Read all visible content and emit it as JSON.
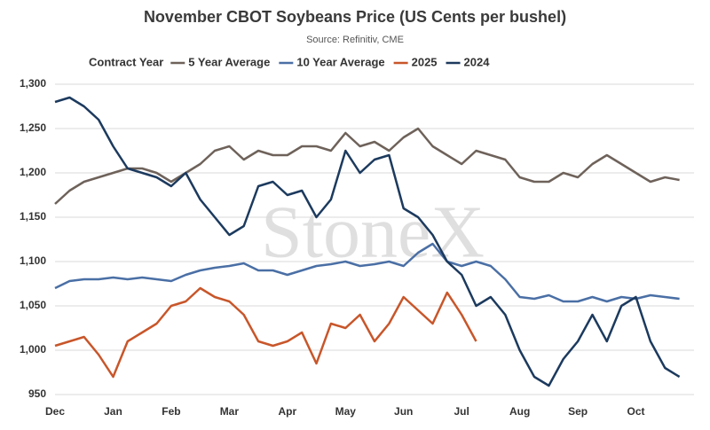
{
  "chart_data": {
    "type": "line",
    "title": "November CBOT Soybeans Price (US Cents per bushel)",
    "subtitle": "Source: Refinitiv, CME",
    "legend_title": "Contract Year",
    "watermark": "StoneX",
    "categories": [
      "Dec",
      null,
      null,
      null,
      "Jan",
      null,
      null,
      null,
      "Feb",
      null,
      null,
      null,
      "Mar",
      null,
      null,
      null,
      "Apr",
      null,
      null,
      null,
      "May",
      null,
      null,
      null,
      "Jun",
      null,
      null,
      null,
      "Jul",
      null,
      null,
      null,
      "Aug",
      null,
      null,
      null,
      "Sep",
      null,
      null,
      null,
      "Oct",
      null,
      null,
      null
    ],
    "series": [
      {
        "name": "5 Year Average",
        "color": "#6e625a",
        "values": [
          1165,
          1180,
          1190,
          1195,
          1200,
          1205,
          1205,
          1200,
          1190,
          1200,
          1210,
          1225,
          1230,
          1215,
          1225,
          1220,
          1220,
          1230,
          1230,
          1225,
          1245,
          1230,
          1235,
          1225,
          1240,
          1250,
          1230,
          1220,
          1210,
          1225,
          1220,
          1215,
          1195,
          1190,
          1190,
          1200,
          1195,
          1210,
          1220,
          1210,
          1200,
          1190,
          1195,
          1192
        ]
      },
      {
        "name": "10 Year Average",
        "color": "#4a6fa5",
        "values": [
          1070,
          1078,
          1080,
          1080,
          1082,
          1080,
          1082,
          1080,
          1078,
          1085,
          1090,
          1093,
          1095,
          1098,
          1090,
          1090,
          1085,
          1090,
          1095,
          1097,
          1100,
          1095,
          1097,
          1100,
          1095,
          1110,
          1120,
          1100,
          1095,
          1100,
          1095,
          1080,
          1060,
          1058,
          1062,
          1055,
          1055,
          1060,
          1055,
          1060,
          1058,
          1062,
          1060,
          1058
        ]
      },
      {
        "name": "2025",
        "color": "#c8562a",
        "values": [
          1005,
          1010,
          1015,
          995,
          970,
          1010,
          1020,
          1030,
          1050,
          1055,
          1070,
          1060,
          1055,
          1040,
          1010,
          1005,
          1010,
          1020,
          985,
          1030,
          1025,
          1040,
          1010,
          1030,
          1060,
          1045,
          1030,
          1065,
          1040,
          1010,
          null,
          null,
          null,
          null,
          null,
          null,
          null,
          null,
          null,
          null,
          null,
          null,
          null,
          null
        ]
      },
      {
        "name": "2024",
        "color": "#1c3a5e",
        "values": [
          1280,
          1285,
          1275,
          1260,
          1230,
          1205,
          1200,
          1195,
          1185,
          1200,
          1170,
          1150,
          1130,
          1140,
          1185,
          1190,
          1175,
          1180,
          1150,
          1170,
          1225,
          1200,
          1215,
          1220,
          1160,
          1150,
          1130,
          1100,
          1085,
          1050,
          1060,
          1040,
          1000,
          970,
          960,
          990,
          1010,
          1040,
          1010,
          1050,
          1060,
          1010,
          980,
          970
        ]
      }
    ],
    "ylim": [
      950,
      1300
    ],
    "yticks": [
      950,
      {
        "value": 1000,
        "label": "1,000"
      },
      {
        "value": 1050,
        "label": "1,050"
      },
      {
        "value": 1100,
        "label": "1,100"
      },
      {
        "value": 1150,
        "label": "1,150"
      },
      {
        "value": 1200,
        "label": "1,200"
      },
      {
        "value": 1250,
        "label": "1,250"
      },
      {
        "value": 1300,
        "label": "1,300"
      }
    ],
    "grid": true
  }
}
